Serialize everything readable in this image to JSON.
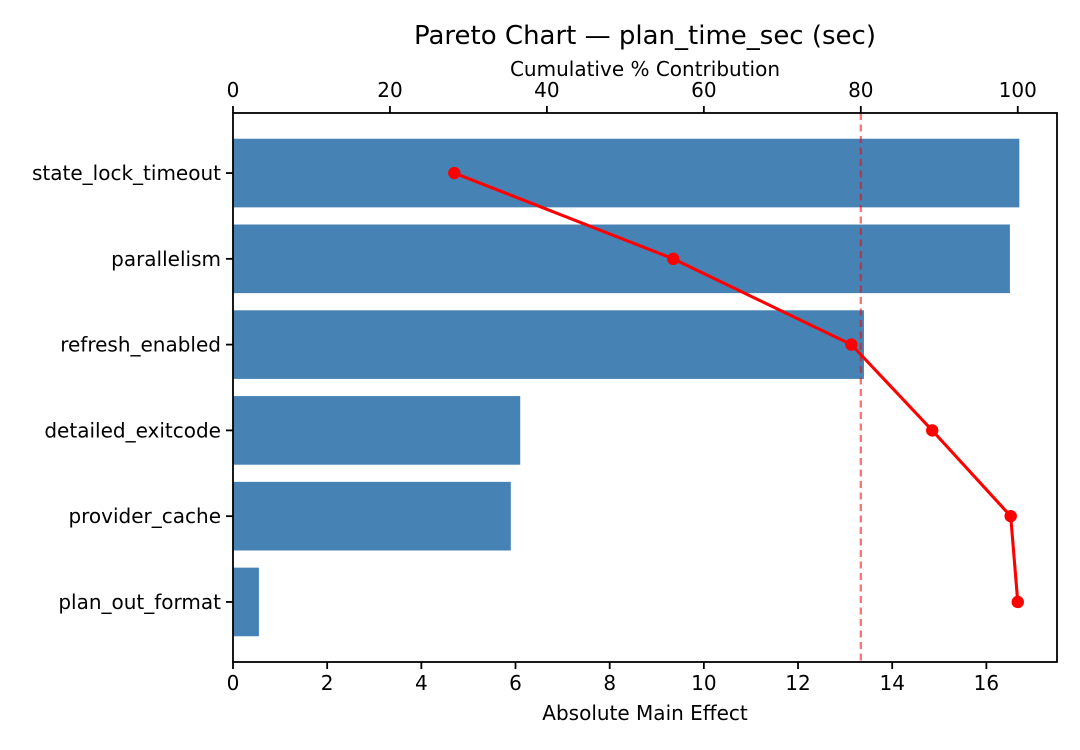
{
  "chart_data": {
    "type": "bar",
    "subtype": "pareto",
    "orientation": "horizontal",
    "title": "Pareto Chart — plan_time_sec (sec)",
    "top_axis": {
      "label": "Cumulative % Contribution",
      "ticks": [
        0,
        20,
        40,
        60,
        80,
        100
      ],
      "range": [
        0,
        105
      ]
    },
    "bottom_axis": {
      "label": "Absolute Main Effect",
      "ticks": [
        0,
        2,
        4,
        6,
        8,
        10,
        12,
        14,
        16
      ],
      "range": [
        0,
        17.5
      ]
    },
    "categories": [
      "state_lock_timeout",
      "parallelism",
      "refresh_enabled",
      "detailed_exitcode",
      "provider_cache",
      "plan_out_format"
    ],
    "series": [
      {
        "name": "Absolute Main Effect",
        "type": "bar",
        "axis": "bottom",
        "values": [
          16.7,
          16.5,
          13.4,
          6.1,
          5.9,
          0.55
        ]
      },
      {
        "name": "Cumulative % Contribution",
        "type": "line",
        "axis": "top",
        "values": [
          28.2,
          56.1,
          78.8,
          89.1,
          99.1,
          100.0
        ]
      }
    ],
    "threshold_line": {
      "axis": "top",
      "value": 80,
      "style": "dashed"
    },
    "grid": false,
    "legend": "none",
    "colors": {
      "bar": "#4682B4",
      "line": "#FF0000",
      "marker": "#FF0000",
      "threshold": "#FF0000",
      "axis": "#000000",
      "background": "#FFFFFF"
    }
  }
}
